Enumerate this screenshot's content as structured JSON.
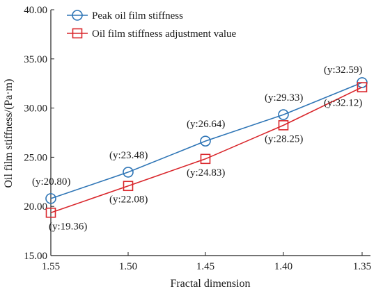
{
  "chart_data": {
    "type": "line",
    "xlabel": "Fractal dimension",
    "ylabel": "Oil film stiffness/(Pa·m)",
    "x": [
      "1.55",
      "1.50",
      "1.45",
      "1.40",
      "1.35"
    ],
    "ylim": [
      15,
      40
    ],
    "yticks": [
      "15.00",
      "20.00",
      "25.00",
      "30.00",
      "35.00",
      "40.00"
    ],
    "grid": false,
    "legend_position": "top-left",
    "series": [
      {
        "name": "Peak oil film stiffness",
        "color": "#2e75b6",
        "marker": "circle",
        "values": [
          20.8,
          23.48,
          26.64,
          29.33,
          32.59
        ],
        "labels": [
          "(y:20.80)",
          "(y:23.48)",
          "(y:26.64)",
          "(y:29.33)",
          "(y:32.59)"
        ]
      },
      {
        "name": "Oil film stiffness adjustment value",
        "color": "#d9262b",
        "marker": "square",
        "values": [
          19.36,
          22.08,
          24.83,
          28.25,
          32.12
        ],
        "labels": [
          "(y:19.36)",
          "(y:22.08)",
          "(y:24.83)",
          "(y:28.25)",
          "(y:32.12)"
        ]
      }
    ]
  }
}
